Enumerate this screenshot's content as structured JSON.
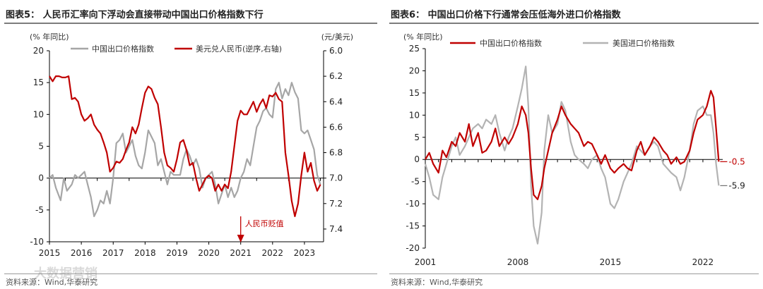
{
  "charts": [
    {
      "title": "图表5：  人民币汇率向下浮动会直接带动中国出口价格指数下行",
      "source": "资料来源：Wind,华泰研究",
      "watermark": "大数据营销",
      "left_axis_unit": "(% 年同比)",
      "right_axis_unit": "(元/美元)",
      "annotation": "人民币贬值",
      "colors": {
        "export_price": "#a6a6a6",
        "usdcny": "#c00000",
        "annotation": "#c00000"
      }
    },
    {
      "title": "图表6：  中国出口价格下行通常会压低海外进口价格指数",
      "source": "资料来源：Wind,华泰研究",
      "left_axis_unit": "(% 年同比)",
      "end_labels": [
        "-0.5",
        "-5.9"
      ],
      "colors": {
        "export_price": "#c00000",
        "us_import_price": "#b3b3b3",
        "end_label_red": "#c00000"
      }
    }
  ],
  "chart_data": [
    {
      "type": "line",
      "title": "人民币汇率向下浮动会直接带动中国出口价格指数下行",
      "x_range": [
        2015,
        2023.6
      ],
      "x_ticks": [
        "2015",
        "2016",
        "2017",
        "2018",
        "2019",
        "2020",
        "2021",
        "2022",
        "2023"
      ],
      "ylim_left": [
        -10,
        20
      ],
      "y_ticks_left": [
        "-10",
        "-5",
        "0",
        "5",
        "10",
        "15",
        "20"
      ],
      "ylim_right_inverted": [
        6.0,
        7.5
      ],
      "y_ticks_right": [
        "6.0",
        "6.2",
        "6.4",
        "6.6",
        "6.8",
        "7.0",
        "7.2",
        "7.4"
      ],
      "series": [
        {
          "name": "中国出口价格指数",
          "axis": "left",
          "x": [
            2015.0,
            2015.1,
            2015.2,
            2015.35,
            2015.45,
            2015.55,
            2015.7,
            2015.8,
            2015.9,
            2016.0,
            2016.1,
            2016.2,
            2016.3,
            2016.4,
            2016.5,
            2016.6,
            2016.7,
            2016.8,
            2016.9,
            2017.0,
            2017.1,
            2017.2,
            2017.3,
            2017.4,
            2017.5,
            2017.6,
            2017.7,
            2017.8,
            2017.9,
            2018.0,
            2018.1,
            2018.2,
            2018.3,
            2018.4,
            2018.5,
            2018.6,
            2018.7,
            2018.8,
            2018.9,
            2019.0,
            2019.1,
            2019.2,
            2019.3,
            2019.4,
            2019.5,
            2019.6,
            2019.7,
            2019.8,
            2019.9,
            2020.0,
            2020.1,
            2020.2,
            2020.3,
            2020.4,
            2020.5,
            2020.6,
            2020.7,
            2020.8,
            2020.9,
            2021.0,
            2021.1,
            2021.2,
            2021.3,
            2021.4,
            2021.5,
            2021.6,
            2021.7,
            2021.8,
            2021.9,
            2022.0,
            2022.1,
            2022.2,
            2022.3,
            2022.4,
            2022.5,
            2022.6,
            2022.7,
            2022.8,
            2022.9,
            2023.0,
            2023.1,
            2023.2,
            2023.3,
            2023.4,
            2023.5
          ],
          "values": [
            0,
            0.5,
            -1.5,
            -3.5,
            0,
            -2,
            -1,
            0.5,
            0,
            0.5,
            1,
            -1,
            -3,
            -6,
            -5,
            -3.5,
            -4,
            -2,
            -4,
            0,
            5.5,
            6,
            7,
            4,
            5,
            6,
            3.5,
            2,
            1.5,
            4,
            7.5,
            6.5,
            5.5,
            2,
            3,
            1,
            -1,
            1,
            0.5,
            0.5,
            0.5,
            3,
            4.5,
            3.5,
            2,
            3,
            1.5,
            -1.5,
            0,
            0.5,
            1,
            -1,
            -4,
            -2.5,
            -1,
            -3,
            -1.5,
            -3,
            -2,
            0,
            1,
            3,
            2,
            5,
            8,
            9,
            10.5,
            11,
            10,
            9.5,
            14,
            15,
            12.5,
            14,
            13,
            15,
            13.5,
            12.5,
            7.5,
            7,
            7.5,
            6,
            4.5,
            0.5,
            -1
          ]
        },
        {
          "name": "美元兑人民币(逆序,右轴)",
          "axis": "right",
          "x": [
            2015.0,
            2015.1,
            2015.2,
            2015.3,
            2015.4,
            2015.5,
            2015.6,
            2015.7,
            2015.8,
            2015.9,
            2016.0,
            2016.1,
            2016.2,
            2016.3,
            2016.4,
            2016.5,
            2016.6,
            2016.7,
            2016.8,
            2016.9,
            2017.0,
            2017.1,
            2017.2,
            2017.3,
            2017.4,
            2017.5,
            2017.6,
            2017.7,
            2017.8,
            2017.9,
            2018.0,
            2018.1,
            2018.2,
            2018.3,
            2018.4,
            2018.5,
            2018.6,
            2018.7,
            2018.8,
            2018.9,
            2019.0,
            2019.1,
            2019.2,
            2019.3,
            2019.4,
            2019.5,
            2019.6,
            2019.7,
            2019.8,
            2019.9,
            2020.0,
            2020.1,
            2020.2,
            2020.3,
            2020.4,
            2020.5,
            2020.6,
            2020.7,
            2020.8,
            2020.9,
            2021.0,
            2021.1,
            2021.2,
            2021.3,
            2021.4,
            2021.5,
            2021.6,
            2021.7,
            2021.8,
            2021.9,
            2022.0,
            2022.1,
            2022.2,
            2022.3,
            2022.4,
            2022.5,
            2022.6,
            2022.7,
            2022.8,
            2022.9,
            2023.0,
            2023.1,
            2023.2,
            2023.3,
            2023.4,
            2023.5
          ],
          "values": [
            6.2,
            6.24,
            6.2,
            6.2,
            6.21,
            6.21,
            6.2,
            6.38,
            6.37,
            6.4,
            6.5,
            6.55,
            6.53,
            6.5,
            6.58,
            6.62,
            6.65,
            6.72,
            6.8,
            6.95,
            6.92,
            6.87,
            6.88,
            6.85,
            6.78,
            6.72,
            6.6,
            6.65,
            6.58,
            6.45,
            6.33,
            6.28,
            6.3,
            6.37,
            6.42,
            6.6,
            6.8,
            6.9,
            6.92,
            6.95,
            6.85,
            6.72,
            6.7,
            6.78,
            6.9,
            6.88,
            7.0,
            7.1,
            7.05,
            7.0,
            6.98,
            7.0,
            7.1,
            7.05,
            7.1,
            7.05,
            7.08,
            6.95,
            6.75,
            6.55,
            6.47,
            6.5,
            6.5,
            6.45,
            6.4,
            6.48,
            6.42,
            6.38,
            6.45,
            6.35,
            6.36,
            6.33,
            6.38,
            6.4,
            6.8,
            6.98,
            7.18,
            7.3,
            7.2,
            6.98,
            6.8,
            6.95,
            6.88,
            7.02,
            7.1,
            7.05
          ]
        }
      ],
      "annotation": {
        "text": "人民币贬值",
        "x": 2021,
        "y": -6
      }
    },
    {
      "type": "line",
      "title": "中国出口价格下行通常会压低海外进口价格指数",
      "x_range": [
        2001,
        2023.5
      ],
      "x_ticks": [
        "2001",
        "2008",
        "2015",
        "2022"
      ],
      "ylim": [
        -20,
        25
      ],
      "y_ticks": [
        "-20",
        "-15",
        "-10",
        "-5",
        "0",
        "5",
        "10",
        "15",
        "20",
        "25"
      ],
      "series": [
        {
          "name": "中国出口价格指数",
          "x": [
            2001.0,
            2001.3,
            2001.6,
            2002.0,
            2002.3,
            2002.6,
            2003.0,
            2003.3,
            2003.6,
            2004.0,
            2004.3,
            2004.6,
            2005.0,
            2005.3,
            2005.6,
            2006.0,
            2006.3,
            2006.6,
            2007.0,
            2007.3,
            2007.6,
            2008.0,
            2008.3,
            2008.6,
            2008.8,
            2009.0,
            2009.2,
            2009.5,
            2009.8,
            2010.0,
            2010.3,
            2010.6,
            2011.0,
            2011.3,
            2011.6,
            2012.0,
            2012.3,
            2012.6,
            2013.0,
            2013.3,
            2013.6,
            2014.0,
            2014.3,
            2014.6,
            2015.0,
            2015.3,
            2015.6,
            2016.0,
            2016.3,
            2016.6,
            2017.0,
            2017.3,
            2017.6,
            2018.0,
            2018.3,
            2018.6,
            2019.0,
            2019.3,
            2019.6,
            2020.0,
            2020.3,
            2020.6,
            2021.0,
            2021.3,
            2021.6,
            2022.0,
            2022.3,
            2022.6,
            2022.8,
            2023.0,
            2023.2
          ],
          "values": [
            0,
            1.5,
            -1,
            -3,
            2,
            0.5,
            4,
            3,
            6,
            4,
            8,
            3,
            6,
            1.5,
            2,
            4,
            7,
            3,
            5,
            3.5,
            5,
            8,
            12,
            10,
            6,
            -2,
            -8,
            -9,
            -6,
            -2,
            2,
            6,
            9,
            12,
            10,
            8,
            7,
            6,
            3,
            4,
            3.5,
            1,
            -1,
            1,
            -2,
            -3,
            -2,
            -1,
            -2,
            -2.5,
            2,
            4,
            1,
            3,
            5,
            4,
            2,
            1,
            -1,
            0.5,
            -1,
            -0.5,
            2,
            6,
            9,
            10,
            12,
            15.5,
            14,
            7,
            -0.5
          ]
        },
        {
          "name": "美国进口价格指数",
          "x": [
            2001.0,
            2001.3,
            2001.6,
            2002.0,
            2002.3,
            2002.6,
            2003.0,
            2003.3,
            2003.6,
            2004.0,
            2004.3,
            2004.6,
            2005.0,
            2005.3,
            2005.6,
            2006.0,
            2006.3,
            2006.6,
            2007.0,
            2007.3,
            2007.6,
            2008.0,
            2008.3,
            2008.6,
            2008.8,
            2009.0,
            2009.2,
            2009.5,
            2009.8,
            2010.0,
            2010.3,
            2010.6,
            2011.0,
            2011.3,
            2011.6,
            2012.0,
            2012.3,
            2012.6,
            2013.0,
            2013.3,
            2013.6,
            2014.0,
            2014.3,
            2014.6,
            2015.0,
            2015.3,
            2015.6,
            2016.0,
            2016.3,
            2016.6,
            2017.0,
            2017.3,
            2017.6,
            2018.0,
            2018.3,
            2018.6,
            2019.0,
            2019.3,
            2019.6,
            2020.0,
            2020.3,
            2020.6,
            2021.0,
            2021.3,
            2021.6,
            2022.0,
            2022.3,
            2022.6,
            2022.8,
            2023.0,
            2023.2
          ],
          "values": [
            -1,
            -4,
            -8,
            -9,
            -4,
            -1,
            3,
            5,
            1,
            3,
            5,
            7,
            8,
            7,
            9,
            8,
            10,
            6,
            2,
            5,
            7,
            12,
            16,
            21,
            12,
            -6,
            -15,
            -19,
            -12,
            2,
            10,
            6,
            8,
            13,
            11,
            4,
            1,
            0,
            -1,
            -2,
            0,
            1,
            -2,
            -4,
            -10,
            -11,
            -9,
            -5,
            -3,
            -1,
            3,
            2,
            1,
            3,
            4,
            3,
            -1,
            -2,
            -3,
            -4,
            -7,
            -4,
            2,
            8,
            11,
            12,
            10,
            10,
            6,
            -1,
            -5.9
          ]
        }
      ],
      "end_labels": [
        {
          "series": "中国出口价格指数",
          "value": -0.5
        },
        {
          "series": "美国进口价格指数",
          "value": -5.9
        }
      ]
    }
  ]
}
